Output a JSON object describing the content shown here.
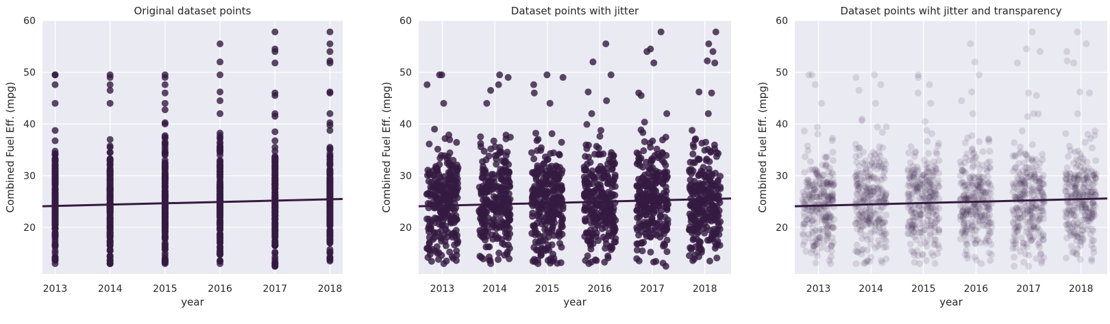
{
  "colors": {
    "background": "#EAEAF2",
    "grid": "#FFFFFF",
    "point": "#351A41",
    "line": "#351A41",
    "text": "#262626"
  },
  "chart_data": [
    {
      "type": "scatter",
      "title": "Original dataset points",
      "xlabel": "year",
      "ylabel": "Combined Fuel Eff. (mpg)",
      "x_ticks": [
        2013,
        2014,
        2015,
        2016,
        2017,
        2018
      ],
      "y_ticks": [
        20,
        30,
        40,
        50,
        60
      ],
      "xlim": [
        2012.77,
        2018.23
      ],
      "ylim": [
        11,
        60
      ],
      "jitter": 0,
      "point_alpha": 0.8,
      "grid": true,
      "regression_line": {
        "x": [
          2012.77,
          2018.23
        ],
        "y": [
          24.1,
          25.5
        ]
      },
      "series": [
        {
          "x": 2013,
          "min": 13,
          "max": 44,
          "outliers": [
            47.6,
            49.5,
            49.5
          ]
        },
        {
          "x": 2014,
          "min": 13,
          "max": 44,
          "outliers": [
            46.5,
            47.6,
            49.0,
            49.5
          ]
        },
        {
          "x": 2015,
          "min": 13,
          "max": 44,
          "outliers": [
            46.0,
            47.6,
            49.0,
            49.5
          ]
        },
        {
          "x": 2016,
          "min": 13,
          "max": 42,
          "outliers": [
            44.5,
            46.2,
            49.5,
            52.0,
            55.5
          ]
        },
        {
          "x": 2017,
          "min": 12.5,
          "max": 42,
          "outliers": [
            45.5,
            46.0,
            51.8,
            54.0,
            54.5,
            57.8
          ]
        },
        {
          "x": 2018,
          "min": 13.5,
          "max": 42,
          "outliers": [
            46.0,
            46.2,
            51.8,
            52.2,
            54.0,
            55.5,
            57.8
          ]
        }
      ]
    },
    {
      "type": "scatter",
      "title": "Dataset points with jitter",
      "xlabel": "year",
      "ylabel": "Combined Fuel Eff. (mpg)",
      "x_ticks": [
        2013,
        2014,
        2015,
        2016,
        2017,
        2018
      ],
      "y_ticks": [
        20,
        30,
        40,
        50,
        60
      ],
      "xlim": [
        2012.55,
        2018.5
      ],
      "ylim": [
        11,
        60
      ],
      "jitter": 0.3,
      "point_alpha": 0.8,
      "grid": true,
      "regression_line": {
        "x": [
          2012.55,
          2018.5
        ],
        "y": [
          24.1,
          25.6
        ]
      },
      "series": [
        {
          "x": 2013,
          "min": 13,
          "max": 44,
          "outliers": [
            47.6,
            49.5,
            49.5
          ]
        },
        {
          "x": 2014,
          "min": 13,
          "max": 44,
          "outliers": [
            46.5,
            47.6,
            49.0,
            49.5
          ]
        },
        {
          "x": 2015,
          "min": 13,
          "max": 44,
          "outliers": [
            46.0,
            47.6,
            49.0,
            49.5
          ]
        },
        {
          "x": 2016,
          "min": 13,
          "max": 42,
          "outliers": [
            44.5,
            46.2,
            49.5,
            52.0,
            55.5
          ]
        },
        {
          "x": 2017,
          "min": 12.5,
          "max": 42,
          "outliers": [
            45.5,
            46.0,
            51.8,
            54.0,
            54.5,
            57.8
          ]
        },
        {
          "x": 2018,
          "min": 13.5,
          "max": 42,
          "outliers": [
            46.0,
            46.2,
            51.8,
            52.2,
            54.0,
            55.5,
            57.8
          ]
        }
      ]
    },
    {
      "type": "scatter",
      "title": "Dataset points wiht jitter and transparency",
      "xlabel": "year",
      "ylabel": "Combined Fuel Eff. (mpg)",
      "x_ticks": [
        2013,
        2014,
        2015,
        2016,
        2017,
        2018
      ],
      "y_ticks": [
        20,
        30,
        40,
        50,
        60
      ],
      "xlim": [
        2012.55,
        2018.5
      ],
      "ylim": [
        11,
        60
      ],
      "jitter": 0.3,
      "point_alpha": 0.12,
      "grid": true,
      "regression_line": {
        "x": [
          2012.55,
          2018.5
        ],
        "y": [
          24.1,
          25.6
        ]
      },
      "series": [
        {
          "x": 2013,
          "min": 13,
          "max": 44,
          "outliers": [
            47.6,
            49.5,
            49.5
          ]
        },
        {
          "x": 2014,
          "min": 13,
          "max": 44,
          "outliers": [
            46.5,
            47.6,
            49.0,
            49.5
          ]
        },
        {
          "x": 2015,
          "min": 13,
          "max": 44,
          "outliers": [
            46.0,
            47.6,
            49.0,
            49.5
          ]
        },
        {
          "x": 2016,
          "min": 13,
          "max": 42,
          "outliers": [
            44.5,
            46.2,
            49.5,
            52.0,
            55.5
          ]
        },
        {
          "x": 2017,
          "min": 12.5,
          "max": 42,
          "outliers": [
            45.5,
            46.0,
            51.8,
            54.0,
            54.5,
            57.8
          ]
        },
        {
          "x": 2018,
          "min": 13.5,
          "max": 42,
          "outliers": [
            46.0,
            46.2,
            51.8,
            52.2,
            54.0,
            55.5,
            57.8
          ]
        }
      ]
    }
  ]
}
